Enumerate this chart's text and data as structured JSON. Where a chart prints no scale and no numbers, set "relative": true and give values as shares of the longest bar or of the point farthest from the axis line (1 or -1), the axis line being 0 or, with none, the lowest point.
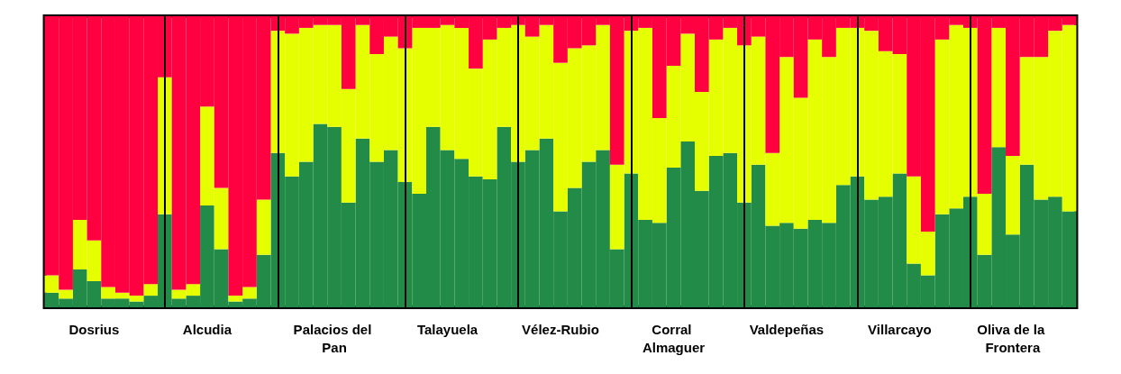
{
  "chart_data": {
    "type": "bar",
    "stacked": true,
    "relative": true,
    "categories": [
      null,
      null,
      null,
      "Dosrius",
      null,
      null,
      null,
      null,
      null,
      null,
      null,
      "Alcudia",
      null,
      null,
      null,
      null,
      null,
      null,
      null,
      null,
      "Palacios del Pan",
      null,
      null,
      null,
      null,
      null,
      null,
      null,
      "Talayuela",
      null,
      null,
      null,
      null,
      null,
      null,
      null,
      "Vélez-Rubio",
      null,
      null,
      null,
      null,
      null,
      null,
      null,
      "Corral Almaguer",
      null,
      null,
      null,
      null,
      null,
      null,
      null,
      "Valdepeñas",
      null,
      null,
      null,
      null,
      null,
      null,
      null,
      "Villarcayo",
      null,
      null,
      null,
      null,
      null,
      null,
      null,
      "Oliva de la Frontera",
      null,
      null,
      null,
      null
    ],
    "series": [
      {
        "color": "#238b48",
        "values": [
          0.05,
          0.03,
          0.13,
          0.09,
          0.03,
          0.03,
          0.02,
          0.04,
          0.32,
          0.03,
          0.04,
          0.35,
          0.2,
          0.02,
          0.03,
          0.18,
          0.53,
          0.45,
          0.5,
          0.63,
          0.62,
          0.36,
          0.58,
          0.5,
          0.54,
          0.43,
          0.39,
          0.62,
          0.54,
          0.51,
          0.45,
          0.44,
          0.62,
          0.5,
          0.54,
          0.58,
          0.33,
          0.41,
          0.5,
          0.54,
          0.2,
          0.46,
          0.3,
          0.29,
          0.48,
          0.57,
          0.4,
          0.52,
          0.53,
          0.36,
          0.49,
          0.28,
          0.29,
          0.27,
          0.3,
          0.29,
          0.42,
          0.45,
          0.37,
          0.38,
          0.46,
          0.15,
          0.11,
          0.32,
          0.34,
          0.38,
          0.18,
          0.55,
          0.25,
          0.49,
          0.37,
          0.38,
          0.33
        ]
      },
      {
        "color": "#e6ff00",
        "values": [
          0.06,
          0.03,
          0.17,
          0.14,
          0.04,
          0.02,
          0.02,
          0.04,
          0.47,
          0.03,
          0.04,
          0.34,
          0.21,
          0.02,
          0.04,
          0.19,
          0.42,
          0.49,
          0.46,
          0.34,
          0.35,
          0.39,
          0.39,
          0.37,
          0.39,
          0.46,
          0.57,
          0.34,
          0.43,
          0.45,
          0.37,
          0.48,
          0.34,
          0.47,
          0.39,
          0.39,
          0.51,
          0.48,
          0.4,
          0.43,
          0.29,
          0.49,
          0.66,
          0.36,
          0.35,
          0.37,
          0.34,
          0.4,
          0.43,
          0.54,
          0.44,
          0.25,
          0.57,
          0.45,
          0.62,
          0.57,
          0.54,
          0.51,
          0.58,
          0.5,
          0.41,
          0.3,
          0.15,
          0.6,
          0.63,
          0.58,
          0.21,
          0.41,
          0.27,
          0.37,
          0.49,
          0.57,
          0.64
        ]
      },
      {
        "color": "#ff0040",
        "values": [
          0.89,
          0.94,
          0.7,
          0.77,
          0.93,
          0.95,
          0.96,
          0.92,
          0.21,
          0.94,
          0.92,
          0.31,
          0.59,
          0.96,
          0.93,
          0.63,
          0.05,
          0.06,
          0.04,
          0.03,
          0.03,
          0.25,
          0.03,
          0.13,
          0.07,
          0.11,
          0.04,
          0.04,
          0.03,
          0.04,
          0.18,
          0.08,
          0.04,
          0.03,
          0.07,
          0.03,
          0.16,
          0.11,
          0.1,
          0.03,
          0.51,
          0.05,
          0.04,
          0.35,
          0.17,
          0.06,
          0.26,
          0.08,
          0.04,
          0.1,
          0.07,
          0.47,
          0.14,
          0.28,
          0.08,
          0.14,
          0.04,
          0.04,
          0.05,
          0.12,
          0.13,
          0.55,
          0.74,
          0.08,
          0.03,
          0.04,
          0.61,
          0.04,
          0.48,
          0.14,
          0.14,
          0.05,
          0.03
        ]
      }
    ]
  }
}
